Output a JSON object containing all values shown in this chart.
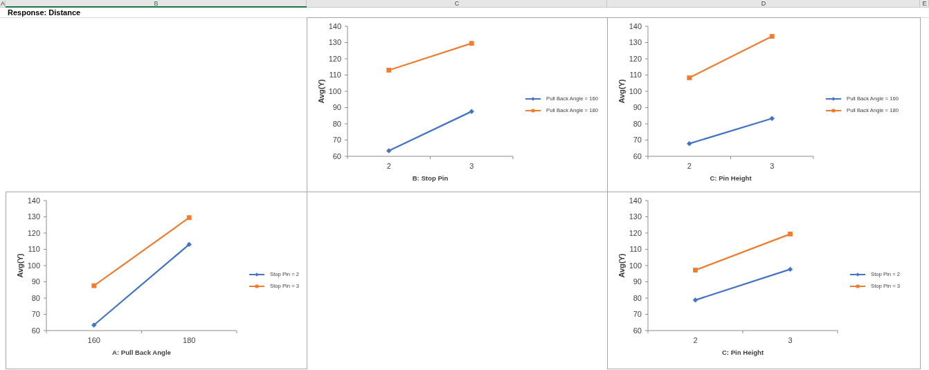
{
  "chart_data": [
    {
      "type": "line",
      "annotations": [
        "Response: Distance",
        "A",
        "B",
        "C",
        "D",
        "E"
      ],
      "categories": [
        "2",
        "3"
      ],
      "xlabel": "B: Stop Pin",
      "ylabel": "Avg(Y)",
      "ylim": [
        60,
        140
      ],
      "yticks": [
        60,
        70,
        80,
        90,
        100,
        110,
        120,
        130,
        140
      ],
      "legend": "right",
      "series": [
        {
          "name": "Pull Back Angle = 160",
          "color": "#4472c4",
          "marker": "diamond",
          "values": [
            63.4,
            87.6
          ]
        },
        {
          "name": "Pull Back Angle = 180",
          "color": "#ed7d31",
          "marker": "square",
          "values": [
            113.0,
            129.5
          ]
        }
      ]
    },
    {
      "type": "line",
      "categories": [
        "2",
        "3"
      ],
      "xlabel": "C: Pin Height",
      "ylabel": "Avg(Y)",
      "ylim": [
        60,
        140
      ],
      "yticks": [
        60,
        70,
        80,
        90,
        100,
        110,
        120,
        130,
        140
      ],
      "legend": "right",
      "series": [
        {
          "name": "Pull Back Angle = 160",
          "color": "#4472c4",
          "marker": "diamond",
          "values": [
            67.8,
            83.3
          ]
        },
        {
          "name": "Pull Back Angle = 180",
          "color": "#ed7d31",
          "marker": "square",
          "values": [
            108.3,
            133.8
          ]
        }
      ]
    },
    {
      "type": "line",
      "categories": [
        "160",
        "180"
      ],
      "xlabel": "A: Pull Back Angle",
      "ylabel": "Avg(Y)",
      "ylim": [
        60,
        140
      ],
      "yticks": [
        60,
        70,
        80,
        90,
        100,
        110,
        120,
        130,
        140
      ],
      "legend": "right",
      "series": [
        {
          "name": "Stop Pin = 2",
          "color": "#4472c4",
          "marker": "diamond",
          "values": [
            63.4,
            113.0
          ]
        },
        {
          "name": "Stop Pin = 3",
          "color": "#ed7d31",
          "marker": "square",
          "values": [
            87.6,
            129.5
          ]
        }
      ]
    },
    {
      "type": "line",
      "categories": [
        "2",
        "3"
      ],
      "xlabel": "C: Pin Height",
      "ylabel": "Avg(Y)",
      "ylim": [
        60,
        140
      ],
      "yticks": [
        60,
        70,
        80,
        90,
        100,
        110,
        120,
        130,
        140
      ],
      "legend": "right",
      "series": [
        {
          "name": "Stop Pin = 2",
          "color": "#4472c4",
          "marker": "diamond",
          "values": [
            78.8,
            97.7
          ]
        },
        {
          "name": "Stop Pin = 3",
          "color": "#ed7d31",
          "marker": "square",
          "values": [
            97.2,
            119.4
          ]
        }
      ]
    }
  ]
}
